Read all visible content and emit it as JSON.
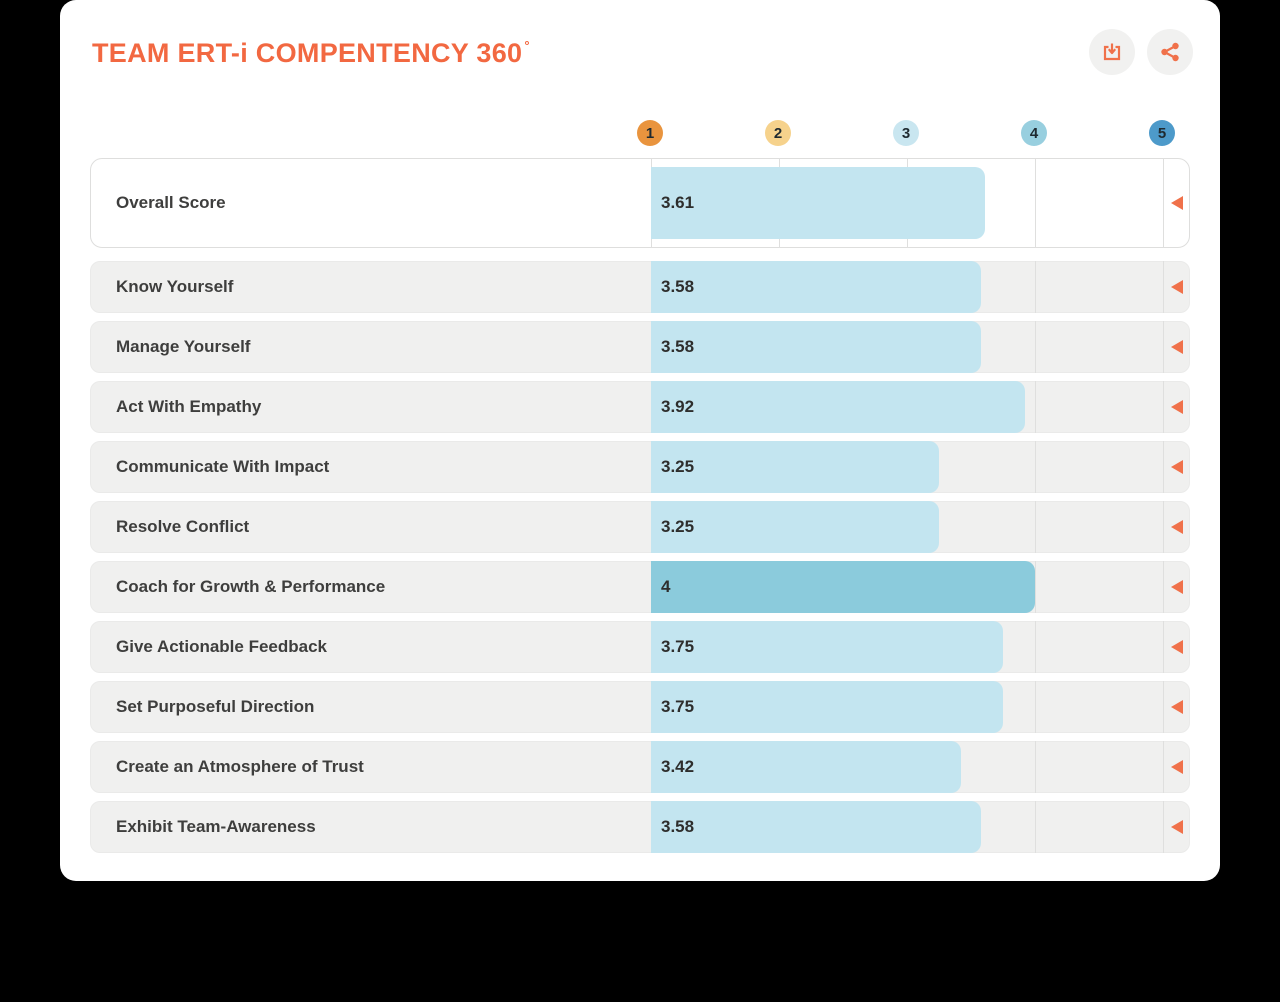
{
  "card": {
    "title": "TEAM ERT-i COMPENTENCY 360",
    "title_degree": "°",
    "accent_color": "#F26841"
  },
  "toolbar": {
    "download_button": "download",
    "share_button": "share",
    "icon_color": "#F0714A",
    "button_bg": "#F1F1F0"
  },
  "scale": {
    "labels": [
      "1",
      "2",
      "3",
      "4",
      "5"
    ],
    "colors": [
      "#E9943E",
      "#F6D28C",
      "#C9E6F0",
      "#98CFDF",
      "#4D9ACA"
    ]
  },
  "chart_data": {
    "type": "bar",
    "orientation": "horizontal",
    "title": "TEAM ERT-i COMPENTENCY 360°",
    "x_domain": [
      1,
      5
    ],
    "x_ticks": [
      1,
      2,
      3,
      4,
      5
    ],
    "grid": true,
    "categories": [
      "Overall Score",
      "Know Yourself",
      "Manage Yourself",
      "Act With Empathy",
      "Communicate With Impact",
      "Resolve Conflict",
      "Coach for Growth & Performance",
      "Give Actionable Feedback",
      "Set Purposeful Direction",
      "Create an Atmosphere of Trust",
      "Exhibit Team-Awareness"
    ],
    "values": [
      3.61,
      3.58,
      3.58,
      3.92,
      3.25,
      3.25,
      4,
      3.75,
      3.75,
      3.42,
      3.58
    ],
    "value_labels": [
      "3.61",
      "3.58",
      "3.58",
      "3.92",
      "3.25",
      "3.25",
      "4",
      "3.75",
      "3.75",
      "3.42",
      "3.58"
    ],
    "overall_row_index": 0,
    "highlight_index": 6,
    "bar_color_default": "#C3E5F0",
    "bar_color_highlight": "#8BCBDC",
    "marker_color": "#F0714A"
  }
}
